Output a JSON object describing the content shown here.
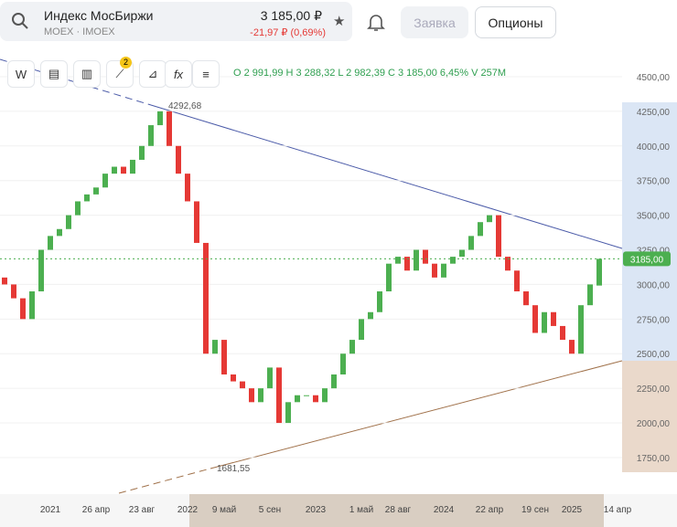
{
  "header": {
    "title": "Индекс МосБиржи",
    "subtitle": "MOEX · IMOEX",
    "price": "3 185,00 ₽",
    "change": "-21,97 ₽ (0,69%)"
  },
  "buttons": [
    "Заявка",
    "Опционы"
  ],
  "toolbar": {
    "letter": "W",
    "badge": "2",
    "fx": "fx",
    "ohlc": "O 2 991,99 H 3 288,32 L 2 982,39 C 3 185,00 6,45% V 257M"
  },
  "chart_data": {
    "type": "candlestick",
    "categories": [
      null,
      null,
      null,
      null,
      null,
      "2021",
      null,
      null,
      null,
      null,
      "26 апр",
      null,
      null,
      null,
      null,
      "23 авг",
      null,
      null,
      null,
      null,
      "2022",
      null,
      null,
      null,
      "9 май",
      null,
      null,
      null,
      null,
      "5 сен",
      null,
      null,
      null,
      null,
      "2023",
      null,
      null,
      null,
      null,
      "1 май",
      null,
      null,
      null,
      "28 авг",
      null,
      null,
      null,
      null,
      "2024",
      null,
      null,
      null,
      null,
      "22 апр",
      null,
      null,
      null,
      null,
      "19 сен",
      null,
      null,
      null,
      "2025",
      null,
      null,
      null,
      null,
      "14 апр"
    ],
    "open": [
      3050,
      3000,
      2900,
      2750,
      2950,
      3250,
      3350,
      3400,
      3500,
      3600,
      3650,
      3700,
      3800,
      3850,
      3800,
      3900,
      4000,
      4150,
      4250,
      4000,
      3800,
      3600,
      3300,
      2500,
      2600,
      2350,
      2300,
      2250,
      2150,
      2250,
      2400,
      2000,
      2150,
      2200,
      2200,
      2150,
      2250,
      2350,
      2500,
      2600,
      2750,
      2800,
      2950,
      3150,
      3200,
      3100,
      3250,
      3150,
      3050,
      3150,
      3200,
      3250,
      3350,
      3450,
      3500,
      3200,
      3100,
      2950,
      2850,
      2650,
      2800,
      2700,
      2600,
      2500,
      2850,
      2991.99,
      null,
      null
    ],
    "close": [
      3000,
      2900,
      2750,
      2950,
      3250,
      3350,
      3400,
      3500,
      3600,
      3650,
      3700,
      3800,
      3850,
      3800,
      3900,
      4000,
      4150,
      4250,
      4000,
      3800,
      3600,
      3300,
      2500,
      2600,
      2350,
      2300,
      2250,
      2150,
      2250,
      2400,
      2000,
      2150,
      2200,
      2200,
      2150,
      2250,
      2350,
      2500,
      2600,
      2750,
      2800,
      2950,
      3150,
      3200,
      3100,
      3250,
      3150,
      3050,
      3150,
      3200,
      3250,
      3350,
      3450,
      3500,
      3200,
      3100,
      2950,
      2850,
      2650,
      2800,
      2700,
      2600,
      2500,
      2850,
      3000,
      3185,
      null,
      null
    ],
    "up_color": "#4caf50",
    "down_color": "#e53935",
    "ylim": [
      1486,
      4645
    ],
    "yticks": [
      {
        "value": 1750,
        "label": "1750,00"
      },
      {
        "value": 2000,
        "label": "2000,00"
      },
      {
        "value": 2250,
        "label": "2250,00"
      },
      {
        "value": 2500,
        "label": "2500,00"
      },
      {
        "value": 2750,
        "label": "2750,00"
      },
      {
        "value": 3000,
        "label": "3000,00"
      },
      {
        "value": 3250,
        "label": "3250,00"
      },
      {
        "value": 3500,
        "label": "3500,00"
      },
      {
        "value": 3750,
        "label": "3750,00"
      },
      {
        "value": 4000,
        "label": "4000,00"
      },
      {
        "value": 4250,
        "label": "4250,00"
      },
      {
        "value": 4500,
        "label": "4500,00"
      }
    ],
    "high_label": "4292,68",
    "low_label": "1681,55",
    "last_label": "3185,00"
  }
}
